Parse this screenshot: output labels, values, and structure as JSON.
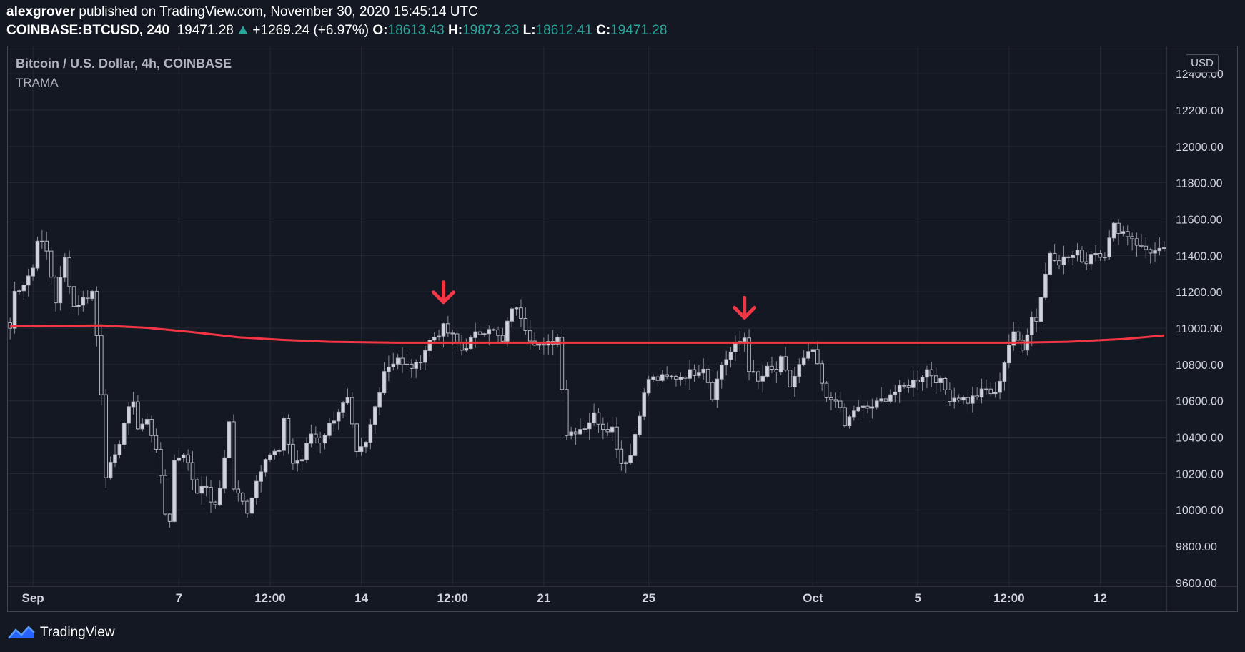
{
  "header": {
    "author": "alexgrover",
    "published_text": "published on TradingView.com, November 30, 2020 15:45:14 UTC",
    "symbol": "COINBASE:BTCUSD, 240",
    "last": "19471.28",
    "change": "+1269.24 (+6.97%)",
    "o_label": "O:",
    "o_value": "18613.43",
    "h_label": "H:",
    "h_value": "19873.23",
    "l_label": "L:",
    "l_value": "18612.41",
    "c_label": "C:",
    "c_value": "19471.28"
  },
  "legend": {
    "title": "Bitcoin / U.S. Dollar, 4h, COINBASE",
    "indicator": "TRAMA"
  },
  "currency_badge": "USD",
  "brand": {
    "name": "TradingView",
    "icon": "tradingview-logo-icon"
  },
  "colors": {
    "background": "#141823",
    "grid": "#242833",
    "candle": "#b2b5be",
    "trama": "#f23645",
    "arrow": "#f23645"
  },
  "chart_data": {
    "type": "candlestick",
    "title": "Bitcoin / U.S. Dollar, 4h, COINBASE",
    "y_ticks": [
      "12400.00",
      "12200.00",
      "12000.00",
      "11800.00",
      "11600.00",
      "11400.00",
      "11200.00",
      "11000.00",
      "10800.00",
      "10600.00",
      "10400.00",
      "10200.00",
      "10000.00",
      "9800.00",
      "9600.00"
    ],
    "y_range": [
      9580,
      12550
    ],
    "x_ticks": [
      {
        "label": "Sep",
        "bar": 5
      },
      {
        "label": "7",
        "bar": 37
      },
      {
        "label": "12:00",
        "bar": 57
      },
      {
        "label": "14",
        "bar": 77
      },
      {
        "label": "12:00",
        "bar": 97
      },
      {
        "label": "21",
        "bar": 117
      },
      {
        "label": "25",
        "bar": 140
      },
      {
        "label": "Oct",
        "bar": 176
      },
      {
        "label": "5",
        "bar": 199
      },
      {
        "label": "12:00",
        "bar": 219
      },
      {
        "label": "12",
        "bar": 239
      }
    ],
    "bar_count": 254,
    "trama_line": [
      {
        "bar": 0,
        "value": 11010
      },
      {
        "bar": 10,
        "value": 11013
      },
      {
        "bar": 20,
        "value": 11015
      },
      {
        "bar": 30,
        "value": 11002
      },
      {
        "bar": 40,
        "value": 10978
      },
      {
        "bar": 50,
        "value": 10950
      },
      {
        "bar": 60,
        "value": 10935
      },
      {
        "bar": 70,
        "value": 10925
      },
      {
        "bar": 85,
        "value": 10920
      },
      {
        "bar": 220,
        "value": 10920
      },
      {
        "bar": 232,
        "value": 10925
      },
      {
        "bar": 244,
        "value": 10940
      },
      {
        "bar": 253,
        "value": 10960
      }
    ],
    "arrows": [
      {
        "bar": 95,
        "value": 11190
      },
      {
        "bar": 161,
        "value": 11105
      }
    ],
    "anchors": [
      [
        0,
        11000
      ],
      [
        1,
        11200
      ],
      [
        3,
        11250
      ],
      [
        5,
        11330
      ],
      [
        6,
        11500
      ],
      [
        8,
        11420
      ],
      [
        10,
        11150
      ],
      [
        12,
        11380
      ],
      [
        14,
        11120
      ],
      [
        18,
        11200
      ],
      [
        19,
        10960
      ],
      [
        20,
        10650
      ],
      [
        21,
        10200
      ],
      [
        23,
        10280
      ],
      [
        25,
        10480
      ],
      [
        27,
        10610
      ],
      [
        28,
        10450
      ],
      [
        30,
        10490
      ],
      [
        32,
        10350
      ],
      [
        34,
        9980
      ],
      [
        35,
        9950
      ],
      [
        36,
        10270
      ],
      [
        38,
        10320
      ],
      [
        41,
        10100
      ],
      [
        42,
        10150
      ],
      [
        45,
        10010
      ],
      [
        46,
        10120
      ],
      [
        48,
        10480
      ],
      [
        49,
        10120
      ],
      [
        52,
        10000
      ],
      [
        54,
        10160
      ],
      [
        56,
        10300
      ],
      [
        59,
        10320
      ],
      [
        60,
        10480
      ],
      [
        62,
        10260
      ],
      [
        64,
        10280
      ],
      [
        66,
        10420
      ],
      [
        68,
        10380
      ],
      [
        72,
        10550
      ],
      [
        74,
        10600
      ],
      [
        76,
        10300
      ],
      [
        78,
        10360
      ],
      [
        82,
        10770
      ],
      [
        85,
        10840
      ],
      [
        86,
        10790
      ],
      [
        89,
        10790
      ],
      [
        92,
        10930
      ],
      [
        95,
        11000
      ],
      [
        97,
        10950
      ],
      [
        99,
        10880
      ],
      [
        102,
        10960
      ],
      [
        105,
        11010
      ],
      [
        108,
        10920
      ],
      [
        110,
        11120
      ],
      [
        112,
        11070
      ],
      [
        114,
        10950
      ],
      [
        117,
        10890
      ],
      [
        120,
        10950
      ],
      [
        122,
        10420
      ],
      [
        126,
        10460
      ],
      [
        128,
        10520
      ],
      [
        130,
        10460
      ],
      [
        132,
        10450
      ],
      [
        134,
        10260
      ],
      [
        136,
        10300
      ],
      [
        138,
        10540
      ],
      [
        140,
        10720
      ],
      [
        142,
        10720
      ],
      [
        146,
        10730
      ],
      [
        150,
        10760
      ],
      [
        152,
        10790
      ],
      [
        154,
        10630
      ],
      [
        156,
        10800
      ],
      [
        159,
        10900
      ],
      [
        161,
        10950
      ],
      [
        162,
        10780
      ],
      [
        164,
        10700
      ],
      [
        166,
        10770
      ],
      [
        168,
        10760
      ],
      [
        169,
        10820
      ],
      [
        171,
        10680
      ],
      [
        173,
        10790
      ],
      [
        176,
        10880
      ],
      [
        177,
        10780
      ],
      [
        179,
        10600
      ],
      [
        181,
        10620
      ],
      [
        183,
        10460
      ],
      [
        185,
        10550
      ],
      [
        188,
        10560
      ],
      [
        190,
        10580
      ],
      [
        193,
        10640
      ],
      [
        195,
        10660
      ],
      [
        199,
        10720
      ],
      [
        201,
        10770
      ],
      [
        204,
        10700
      ],
      [
        206,
        10620
      ],
      [
        208,
        10620
      ],
      [
        210,
        10600
      ],
      [
        214,
        10660
      ],
      [
        216,
        10630
      ],
      [
        219,
        10910
      ],
      [
        220,
        10960
      ],
      [
        222,
        10900
      ],
      [
        224,
        11060
      ],
      [
        225,
        11050
      ],
      [
        228,
        11420
      ],
      [
        230,
        11370
      ],
      [
        234,
        11410
      ],
      [
        236,
        11360
      ],
      [
        237,
        11420
      ],
      [
        240,
        11410
      ],
      [
        242,
        11560
      ],
      [
        246,
        11500
      ],
      [
        248,
        11440
      ],
      [
        251,
        11420
      ],
      [
        253,
        11420
      ]
    ]
  }
}
